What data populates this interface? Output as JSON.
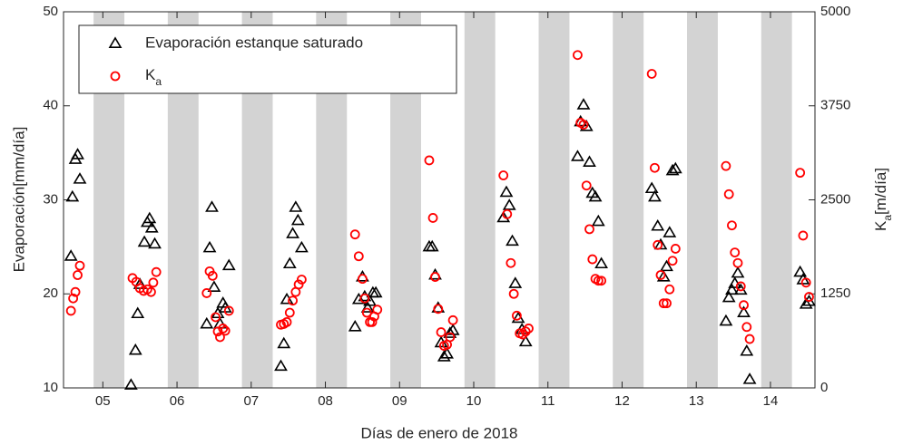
{
  "chart_data": {
    "type": "scatter",
    "xlabel": "Días de enero de 2018",
    "ylabel": "Evaporación[mm/día]",
    "y2label": "Ka[m/día]",
    "xlim": [
      4.47,
      14.6
    ],
    "xticks": [
      {
        "value": 5,
        "label": "05"
      },
      {
        "value": 6,
        "label": "06"
      },
      {
        "value": 7,
        "label": "07"
      },
      {
        "value": 8,
        "label": "08"
      },
      {
        "value": 9,
        "label": "09"
      },
      {
        "value": 10,
        "label": "10"
      },
      {
        "value": 11,
        "label": "11"
      },
      {
        "value": 12,
        "label": "12"
      },
      {
        "value": 13,
        "label": "13"
      },
      {
        "value": 14,
        "label": "14"
      }
    ],
    "ylim": [
      10,
      50
    ],
    "yticks": [
      10,
      20,
      30,
      40,
      50
    ],
    "y2lim": [
      0,
      5000
    ],
    "y2ticks": [
      0,
      1250,
      2500,
      3750,
      5000
    ],
    "legend": "upper left",
    "shaded_color": "#d3d3d3",
    "shaded_periods": [
      [
        4.875,
        5.29
      ],
      [
        5.875,
        6.29
      ],
      [
        6.875,
        7.29
      ],
      [
        7.875,
        8.29
      ],
      [
        8.875,
        9.29
      ],
      [
        9.875,
        10.29
      ],
      [
        10.875,
        11.29
      ],
      [
        11.875,
        12.29
      ],
      [
        12.875,
        13.29
      ],
      [
        13.875,
        14.29
      ]
    ],
    "series": [
      {
        "name": "Evaporación estanque saturado",
        "color": "#000000",
        "marker": "triangle",
        "x": [
          4.57,
          4.59,
          4.63,
          4.66,
          4.69,
          5.38,
          5.44,
          5.47,
          5.5,
          5.56,
          5.6,
          5.63,
          5.66,
          5.7,
          6.4,
          6.44,
          6.47,
          6.5,
          6.55,
          6.58,
          6.62,
          6.65,
          6.7,
          7.4,
          7.44,
          7.48,
          7.52,
          7.56,
          7.6,
          7.63,
          7.68,
          8.4,
          8.45,
          8.5,
          8.53,
          8.57,
          8.6,
          8.64,
          8.68,
          9.4,
          9.44,
          9.48,
          9.52,
          9.56,
          9.6,
          9.64,
          9.68,
          9.72,
          10.4,
          10.44,
          10.48,
          10.52,
          10.56,
          10.6,
          10.65,
          10.7,
          11.4,
          11.44,
          11.48,
          11.52,
          11.56,
          11.6,
          11.64,
          11.68,
          11.72,
          12.4,
          12.44,
          12.48,
          12.52,
          12.56,
          12.6,
          12.64,
          12.68,
          12.72,
          13.4,
          13.44,
          13.48,
          13.52,
          13.56,
          13.6,
          13.64,
          13.68,
          13.72,
          14.4,
          14.44,
          14.48,
          14.52
        ],
        "values": [
          24,
          30.3,
          34.3,
          34.8,
          32.2,
          10.3,
          14,
          17.9,
          21,
          25.5,
          27.6,
          28,
          27,
          25.3,
          16.8,
          24.9,
          29.2,
          20.7,
          17.9,
          16.8,
          19,
          18.5,
          23,
          12.3,
          14.7,
          19.4,
          23.2,
          26.4,
          29.2,
          27.8,
          24.9,
          16.5,
          19.4,
          21.8,
          19.7,
          18.5,
          19.2,
          20.1,
          20.1,
          25,
          25,
          22,
          18.5,
          14.8,
          13.3,
          13.6,
          15.8,
          16.1,
          28.1,
          30.8,
          29.4,
          25.6,
          21.1,
          17.4,
          16.2,
          14.9,
          34.6,
          38.3,
          40.1,
          37.8,
          34,
          30.7,
          30.3,
          27.7,
          23.2,
          31.2,
          30.3,
          27.2,
          25.2,
          21.8,
          22.9,
          26.5,
          33.1,
          33.3,
          17.1,
          19.6,
          20.4,
          21.1,
          22.2,
          20.4,
          18,
          13.9,
          10.9,
          22.3,
          21.5,
          18.9,
          19.2
        ]
      },
      {
        "name": "Ka",
        "color": "#ff0000",
        "marker": "circle",
        "axis": "y2",
        "x": [
          4.57,
          4.6,
          4.63,
          4.66,
          4.69,
          5.4,
          5.45,
          5.5,
          5.55,
          5.6,
          5.65,
          5.68,
          5.72,
          6.4,
          6.44,
          6.48,
          6.52,
          6.55,
          6.58,
          6.62,
          6.65,
          6.7,
          7.4,
          7.44,
          7.48,
          7.52,
          7.56,
          7.6,
          7.64,
          7.68,
          8.4,
          8.45,
          8.5,
          8.53,
          8.56,
          8.6,
          8.63,
          8.66,
          8.7,
          9.4,
          9.45,
          9.48,
          9.52,
          9.56,
          9.6,
          9.64,
          9.68,
          9.72,
          10.4,
          10.45,
          10.5,
          10.54,
          10.58,
          10.62,
          10.66,
          10.7,
          10.74,
          11.4,
          11.44,
          11.48,
          11.52,
          11.56,
          11.6,
          11.64,
          11.68,
          11.72,
          12.4,
          12.44,
          12.48,
          12.52,
          12.56,
          12.6,
          12.64,
          12.68,
          12.72,
          13.4,
          13.44,
          13.48,
          13.52,
          13.56,
          13.6,
          13.64,
          13.68,
          13.72,
          14.4,
          14.44,
          14.48,
          14.52
        ],
        "values": [
          1025,
          1190,
          1275,
          1500,
          1625,
          1460,
          1410,
          1325,
          1290,
          1310,
          1275,
          1400,
          1540,
          1260,
          1550,
          1490,
          940,
          750,
          675,
          790,
          760,
          1025,
          840,
          850,
          875,
          1000,
          1160,
          1275,
          1375,
          1440,
          2040,
          1750,
          1450,
          1190,
          1000,
          875,
          875,
          950,
          1040,
          3025,
          2260,
          1475,
          1050,
          740,
          560,
          575,
          675,
          900,
          2825,
          2310,
          1660,
          1250,
          960,
          725,
          710,
          750,
          790,
          4425,
          3525,
          3500,
          2690,
          2110,
          1710,
          1450,
          1425,
          1425,
          4175,
          2925,
          1900,
          1500,
          1125,
          1125,
          1310,
          1690,
          1850,
          2950,
          2575,
          2160,
          1800,
          1660,
          1350,
          1100,
          810,
          650,
          2860,
          2025,
          1400,
          1210
        ]
      }
    ]
  }
}
